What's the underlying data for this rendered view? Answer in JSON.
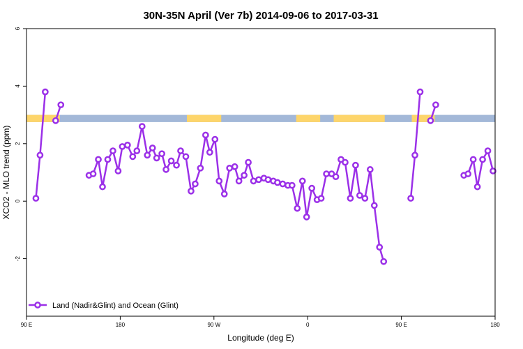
{
  "chart_data": {
    "type": "line",
    "title": "30N-35N April (Ver 7b)   2014-09-06 to 2017-03-31",
    "xlabel": "Longitude (deg E)",
    "ylabel": "XCO2 - MLO trend (ppm)",
    "x_ticks": [
      {
        "value": 90,
        "label": "90 E"
      },
      {
        "value": 180,
        "label": "180"
      },
      {
        "value": 270,
        "label": "90 W"
      },
      {
        "value": 360,
        "label": "0"
      },
      {
        "value": 450,
        "label": "90 E"
      },
      {
        "value": 540,
        "label": "180"
      }
    ],
    "y_ticks": [
      {
        "value": -2,
        "label": "-2"
      },
      {
        "value": 0,
        "label": "0"
      },
      {
        "value": 2,
        "label": "2"
      },
      {
        "value": 4,
        "label": "4"
      },
      {
        "value": 6,
        "label": "6"
      }
    ],
    "xlim": [
      90,
      540
    ],
    "ylim": [
      -4,
      6
    ],
    "grid": false,
    "legend_position": "bottom-left",
    "series": [
      {
        "name": "Land (Nadir&Glint) and Ocean (Glint)",
        "color": "#9b30e8",
        "segments": [
          [
            [
              99,
              0.1
            ],
            [
              103,
              1.6
            ],
            [
              108,
              3.8
            ]
          ],
          [
            [
              118,
              2.8
            ],
            [
              123,
              3.35
            ]
          ],
          [
            [
              150,
              0.9
            ],
            [
              154,
              0.95
            ],
            [
              159,
              1.45
            ],
            [
              163,
              0.5
            ],
            [
              168,
              1.45
            ],
            [
              173,
              1.75
            ],
            [
              178,
              1.05
            ],
            [
              182,
              1.9
            ],
            [
              187,
              1.95
            ],
            [
              192,
              1.55
            ],
            [
              196,
              1.75
            ],
            [
              201,
              2.6
            ],
            [
              206,
              1.6
            ],
            [
              211,
              1.85
            ],
            [
              215,
              1.5
            ],
            [
              220,
              1.65
            ],
            [
              224,
              1.1
            ],
            [
              229,
              1.4
            ],
            [
              234,
              1.25
            ],
            [
              238,
              1.75
            ],
            [
              243,
              1.55
            ],
            [
              248,
              0.35
            ],
            [
              252,
              0.6
            ],
            [
              257,
              1.15
            ],
            [
              262,
              2.3
            ],
            [
              266,
              1.7
            ],
            [
              271,
              2.15
            ],
            [
              275,
              0.7
            ],
            [
              280,
              0.25
            ],
            [
              285,
              1.15
            ],
            [
              290,
              1.2
            ],
            [
              294,
              0.7
            ],
            [
              299,
              0.9
            ],
            [
              303,
              1.35
            ],
            [
              308,
              0.7
            ],
            [
              313,
              0.75
            ],
            [
              318,
              0.8
            ],
            [
              322,
              0.75
            ],
            [
              327,
              0.7
            ],
            [
              331,
              0.65
            ],
            [
              336,
              0.6
            ],
            [
              341,
              0.55
            ],
            [
              345,
              0.55
            ],
            [
              350,
              -0.25
            ],
            [
              355,
              0.7
            ],
            [
              359,
              -0.55
            ],
            [
              364,
              0.45
            ],
            [
              369,
              0.05
            ],
            [
              373,
              0.1
            ],
            [
              378,
              0.95
            ],
            [
              383,
              0.95
            ],
            [
              387,
              0.85
            ],
            [
              392,
              1.45
            ],
            [
              396,
              1.35
            ],
            [
              401,
              0.1
            ],
            [
              406,
              1.25
            ],
            [
              410,
              0.2
            ],
            [
              415,
              0.1
            ],
            [
              420,
              1.1
            ],
            [
              424,
              -0.15
            ],
            [
              429,
              -1.6
            ],
            [
              433,
              -2.1
            ]
          ],
          [
            [
              459,
              0.1
            ],
            [
              463,
              1.6
            ],
            [
              468,
              3.8
            ]
          ],
          [
            [
              478,
              2.8
            ],
            [
              483,
              3.35
            ]
          ],
          [
            [
              510,
              0.9
            ],
            [
              514,
              0.95
            ],
            [
              519,
              1.45
            ],
            [
              523,
              0.5
            ],
            [
              528,
              1.45
            ],
            [
              533,
              1.75
            ],
            [
              538,
              1.05
            ]
          ]
        ]
      }
    ],
    "surface_strip": {
      "y_range": [
        2.75,
        3.0
      ],
      "land_color": "#fdd56b",
      "ocean_color": "#a3b8d8",
      "land_spans": [
        [
          90,
          113
        ],
        [
          108,
          122
        ],
        [
          244,
          277
        ],
        [
          349,
          372
        ],
        [
          385,
          434
        ],
        [
          460,
          482
        ]
      ]
    }
  }
}
